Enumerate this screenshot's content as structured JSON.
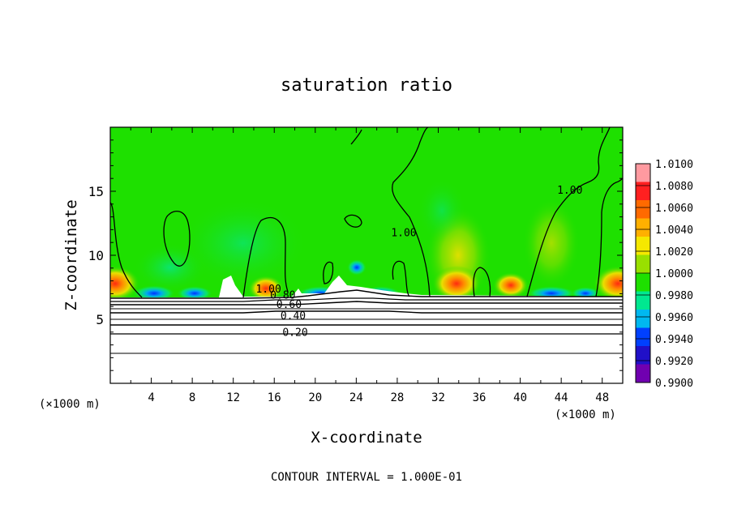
{
  "chart_data": {
    "type": "heatmap",
    "title": "saturation ratio",
    "xlabel": "X-coordinate",
    "ylabel": "Z-coordinate",
    "x_unit_left": "(×1000 m)",
    "x_unit_right": "(×1000 m)",
    "xlim": [
      0,
      50
    ],
    "ylim": [
      0,
      20
    ],
    "x_ticks": [
      4,
      8,
      12,
      16,
      20,
      24,
      28,
      32,
      36,
      40,
      44,
      48
    ],
    "x_tick_labels": [
      "4",
      "8",
      "12",
      "16",
      "20",
      "24",
      "28",
      "32",
      "36",
      "40",
      "44",
      "48"
    ],
    "y_ticks": [
      5,
      10,
      15
    ],
    "y_tick_labels": [
      "5",
      "10",
      "15"
    ],
    "colorbar": {
      "min": 0.99,
      "max": 1.01,
      "labels": [
        "1.0100",
        "1.0080",
        "1.0060",
        "1.0040",
        "1.0020",
        "1.0000",
        "0.9980",
        "0.9960",
        "0.9940",
        "0.9920",
        "0.9900"
      ],
      "colors": [
        "#ff9aa0",
        "#ff2020",
        "#ff6a00",
        "#ffb000",
        "#f5e800",
        "#99e000",
        "#1ee000",
        "#00e890",
        "#00b8f0",
        "#0040ff",
        "#2010c8",
        "#7000b0"
      ]
    },
    "contour_labels": [
      {
        "text": "1.00",
        "x": 43.6,
        "y": 14.8
      },
      {
        "text": "1.00",
        "x": 27.4,
        "y": 11.5
      },
      {
        "text": "1.00",
        "x": 14.2,
        "y": 7.1
      },
      {
        "text": "0.80",
        "x": 15.6,
        "y": 6.6
      },
      {
        "text": "0.60",
        "x": 16.2,
        "y": 5.9
      },
      {
        "text": "0.40",
        "x": 16.6,
        "y": 5.0
      },
      {
        "text": "0.20",
        "x": 16.8,
        "y": 3.7
      }
    ],
    "footer": "CONTOUR INTERVAL = 1.000E-01"
  }
}
